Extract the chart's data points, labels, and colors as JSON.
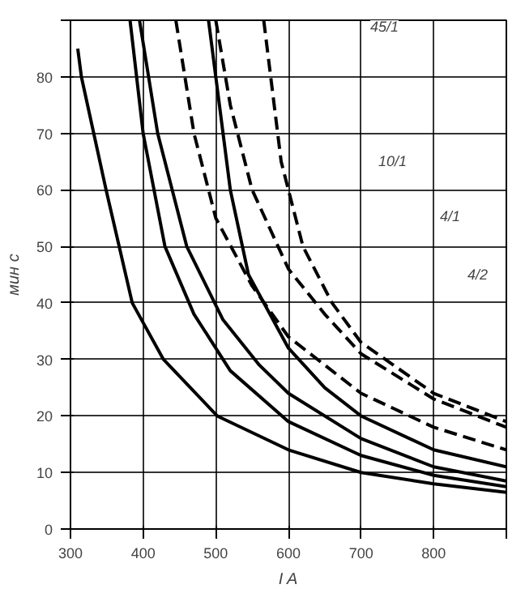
{
  "chart_data": {
    "type": "line",
    "ylabel": "мин с",
    "xlabel": "I A",
    "xlim": [
      300,
      900
    ],
    "ylim": [
      0,
      90
    ],
    "xticks": [
      300,
      400,
      500,
      600,
      700,
      800,
      {
        "value": 900,
        "label": null
      }
    ],
    "yticks": [
      0,
      10,
      20,
      30,
      40,
      50,
      60,
      70,
      80,
      {
        "value": 90,
        "label": null
      }
    ],
    "grid": true,
    "series": [
      {
        "color": "#000000",
        "line_style": "solid",
        "x": [
          310,
          315,
          349,
          385,
          428,
          502,
          600,
          700,
          800,
          900
        ],
        "values": [
          85,
          80,
          60,
          40,
          30,
          20,
          14,
          10,
          8,
          6.5
        ]
      },
      {
        "color": "#000000",
        "line_style": "solid",
        "x": [
          382,
          400,
          430,
          470,
          520,
          600,
          700,
          800,
          900
        ],
        "values": [
          90,
          70,
          50,
          38,
          28,
          19,
          13,
          9.5,
          7.5
        ]
      },
      {
        "color": "#000000",
        "line_style": "solid",
        "x": [
          395,
          420,
          460,
          510,
          560,
          600,
          700,
          800,
          900
        ],
        "values": [
          90,
          70,
          50,
          37,
          29,
          24,
          16,
          11,
          8.5
        ]
      },
      {
        "color": "#000000",
        "line_style": "solid",
        "x": [
          490,
          500,
          520,
          545,
          600,
          650,
          700,
          800,
          900
        ],
        "values": [
          90,
          80,
          60,
          45,
          32,
          25,
          20,
          14,
          11
        ]
      },
      {
        "color": "#000000",
        "line_style": "dashed",
        "x": [
          445,
          470,
          500,
          550,
          600,
          700,
          800,
          900
        ],
        "values": [
          90,
          70,
          55,
          43,
          34,
          24,
          18,
          14
        ]
      },
      {
        "color": "#000000",
        "line_style": "dashed",
        "x": [
          500,
          520,
          550,
          600,
          650,
          700,
          800,
          900
        ],
        "values": [
          90,
          75,
          60,
          46,
          38,
          31,
          23,
          18
        ]
      },
      {
        "color": "#000000",
        "line_style": "dashed",
        "x": [
          566,
          590,
          620,
          660,
          700,
          800,
          900
        ],
        "values": [
          90,
          65,
          50,
          40,
          33,
          24,
          19
        ]
      }
    ],
    "annotations": [
      "45/1",
      "10/1",
      "4/1",
      "4/2"
    ]
  }
}
